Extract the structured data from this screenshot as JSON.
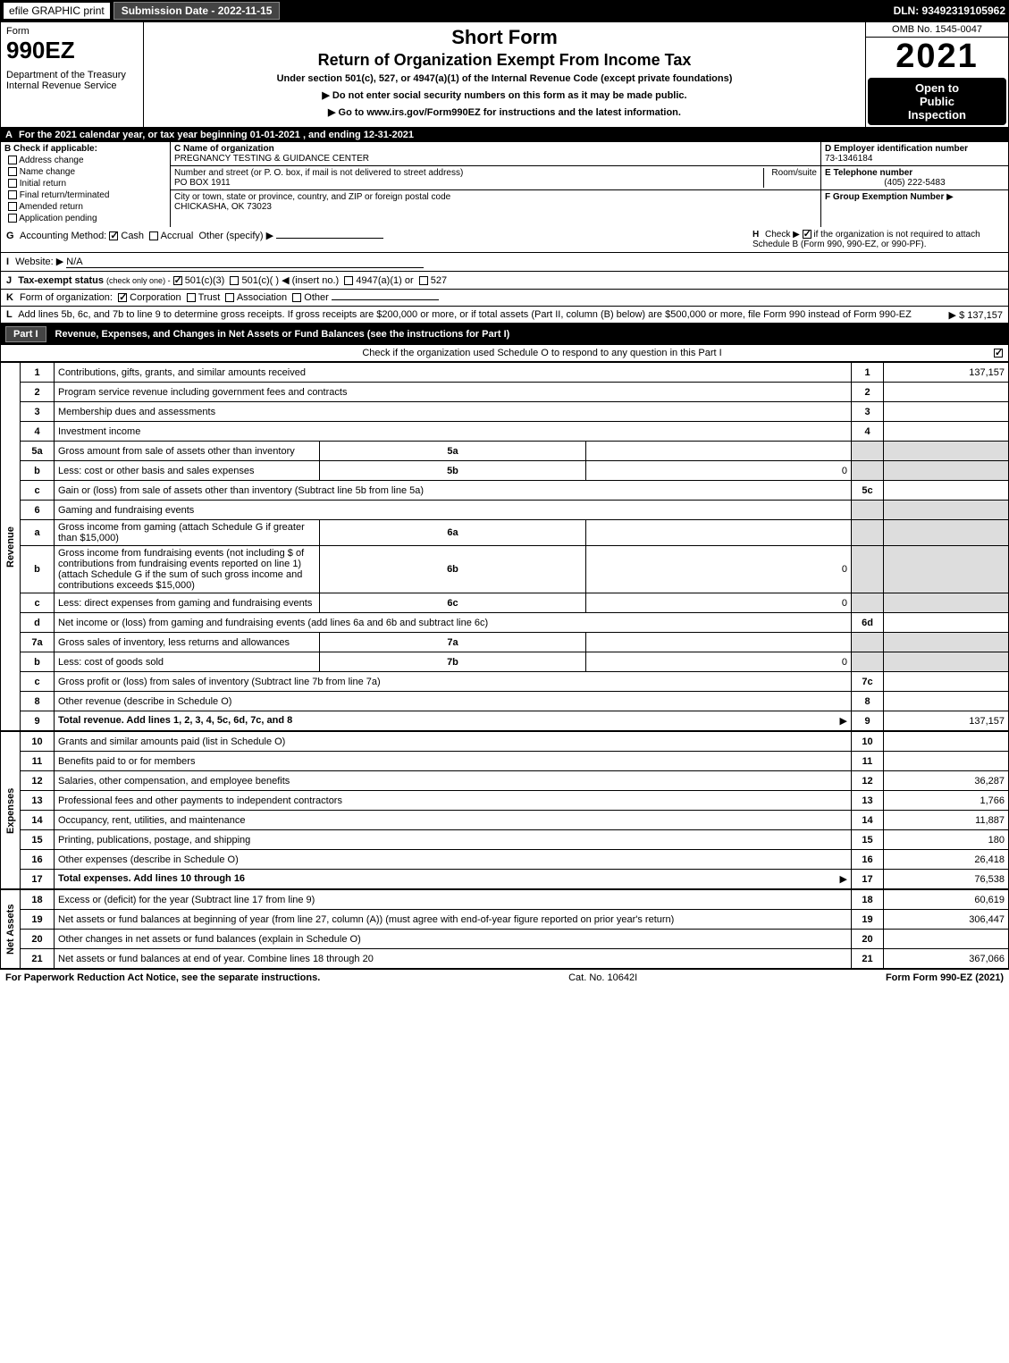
{
  "topbar": {
    "efile": "efile GRAPHIC print",
    "submission": "Submission Date - 2022-11-15",
    "dln": "DLN: 93492319105962"
  },
  "header": {
    "form_word": "Form",
    "form_number": "990EZ",
    "dept": "Department of the Treasury\nInternal Revenue Service",
    "title": "Short Form",
    "subtitle": "Return of Organization Exempt From Income Tax",
    "under": "Under section 501(c), 527, or 4947(a)(1) of the Internal Revenue Code (except private foundations)",
    "do_not": "▶ Do not enter social security numbers on this form as it may be made public.",
    "go_to": "▶ Go to www.irs.gov/Form990EZ for instructions and the latest information.",
    "omb": "OMB No. 1545-0047",
    "year": "2021",
    "open": "Open to\nPublic\nInspection"
  },
  "row_a": {
    "letter": "A",
    "text": "For the 2021 calendar year, or tax year beginning 01-01-2021 , and ending 12-31-2021"
  },
  "col_b": {
    "letter": "B",
    "label": "Check if applicable:",
    "options": [
      "Address change",
      "Name change",
      "Initial return",
      "Final return/terminated",
      "Amended return",
      "Application pending"
    ]
  },
  "col_c": {
    "name_label": "C Name of organization",
    "name": "PREGNANCY TESTING & GUIDANCE CENTER",
    "street_label": "Number and street (or P. O. box, if mail is not delivered to street address)",
    "room_label": "Room/suite",
    "street": "PO BOX 1911",
    "city_label": "City or town, state or province, country, and ZIP or foreign postal code",
    "city": "CHICKASHA, OK  73023"
  },
  "col_d": {
    "d_label": "D Employer identification number",
    "d_value": "73-1346184",
    "e_label": "E Telephone number",
    "e_value": "(405) 222-5483",
    "f_label": "F Group Exemption Number",
    "f_arrow": "▶"
  },
  "row_g": {
    "letter": "G",
    "label": "Accounting Method:",
    "cash": "Cash",
    "accrual": "Accrual",
    "other": "Other (specify) ▶"
  },
  "row_h": {
    "letter": "H",
    "text": "Check ▶",
    "text2": "if the organization is not required to attach Schedule B (Form 990, 990-EZ, or 990-PF)."
  },
  "row_i": {
    "letter": "I",
    "label": "Website: ▶",
    "value": "N/A"
  },
  "row_j": {
    "letter": "J",
    "label": "Tax-exempt status",
    "sub": "(check only one) -",
    "opt1": "501(c)(3)",
    "opt2": "501(c)(  ) ◀ (insert no.)",
    "opt3": "4947(a)(1) or",
    "opt4": "527"
  },
  "row_k": {
    "letter": "K",
    "label": "Form of organization:",
    "opt1": "Corporation",
    "opt2": "Trust",
    "opt3": "Association",
    "opt4": "Other"
  },
  "row_l": {
    "letter": "L",
    "text": "Add lines 5b, 6c, and 7b to line 9 to determine gross receipts. If gross receipts are $200,000 or more, or if total assets (Part II, column (B) below) are $500,000 or more, file Form 990 instead of Form 990-EZ",
    "amount": "▶ $ 137,157"
  },
  "part1": {
    "label": "Part I",
    "title": "Revenue, Expenses, and Changes in Net Assets or Fund Balances (see the instructions for Part I)",
    "check_text": "Check if the organization used Schedule O to respond to any question in this Part I"
  },
  "sections": {
    "revenue": "Revenue",
    "expenses": "Expenses",
    "netassets": "Net Assets"
  },
  "lines": [
    {
      "num": "1",
      "desc": "Contributions, gifts, grants, and similar amounts received",
      "ln": "1",
      "amt": "137,157"
    },
    {
      "num": "2",
      "desc": "Program service revenue including government fees and contracts",
      "ln": "2",
      "amt": ""
    },
    {
      "num": "3",
      "desc": "Membership dues and assessments",
      "ln": "3",
      "amt": ""
    },
    {
      "num": "4",
      "desc": "Investment income",
      "ln": "4",
      "amt": ""
    },
    {
      "num": "5a",
      "desc": "Gross amount from sale of assets other than inventory",
      "sub_ln": "5a",
      "sub_amt": ""
    },
    {
      "num": "b",
      "desc": "Less: cost or other basis and sales expenses",
      "sub_ln": "5b",
      "sub_amt": "0"
    },
    {
      "num": "c",
      "desc": "Gain or (loss) from sale of assets other than inventory (Subtract line 5b from line 5a)",
      "ln": "5c",
      "amt": ""
    },
    {
      "num": "6",
      "desc": "Gaming and fundraising events"
    },
    {
      "num": "a",
      "desc": "Gross income from gaming (attach Schedule G if greater than $15,000)",
      "sub_ln": "6a",
      "sub_amt": ""
    },
    {
      "num": "b",
      "desc": "Gross income from fundraising events (not including $            of contributions from fundraising events reported on line 1) (attach Schedule G if the sum of such gross income and contributions exceeds $15,000)",
      "sub_ln": "6b",
      "sub_amt": "0"
    },
    {
      "num": "c",
      "desc": "Less: direct expenses from gaming and fundraising events",
      "sub_ln": "6c",
      "sub_amt": "0"
    },
    {
      "num": "d",
      "desc": "Net income or (loss) from gaming and fundraising events (add lines 6a and 6b and subtract line 6c)",
      "ln": "6d",
      "amt": ""
    },
    {
      "num": "7a",
      "desc": "Gross sales of inventory, less returns and allowances",
      "sub_ln": "7a",
      "sub_amt": ""
    },
    {
      "num": "b",
      "desc": "Less: cost of goods sold",
      "sub_ln": "7b",
      "sub_amt": "0"
    },
    {
      "num": "c",
      "desc": "Gross profit or (loss) from sales of inventory (Subtract line 7b from line 7a)",
      "ln": "7c",
      "amt": ""
    },
    {
      "num": "8",
      "desc": "Other revenue (describe in Schedule O)",
      "ln": "8",
      "amt": ""
    },
    {
      "num": "9",
      "desc": "Total revenue. Add lines 1, 2, 3, 4, 5c, 6d, 7c, and 8",
      "ln": "9",
      "amt": "137,157",
      "bold": true,
      "arrow": true
    }
  ],
  "expense_lines": [
    {
      "num": "10",
      "desc": "Grants and similar amounts paid (list in Schedule O)",
      "ln": "10",
      "amt": ""
    },
    {
      "num": "11",
      "desc": "Benefits paid to or for members",
      "ln": "11",
      "amt": ""
    },
    {
      "num": "12",
      "desc": "Salaries, other compensation, and employee benefits",
      "ln": "12",
      "amt": "36,287"
    },
    {
      "num": "13",
      "desc": "Professional fees and other payments to independent contractors",
      "ln": "13",
      "amt": "1,766"
    },
    {
      "num": "14",
      "desc": "Occupancy, rent, utilities, and maintenance",
      "ln": "14",
      "amt": "11,887"
    },
    {
      "num": "15",
      "desc": "Printing, publications, postage, and shipping",
      "ln": "15",
      "amt": "180"
    },
    {
      "num": "16",
      "desc": "Other expenses (describe in Schedule O)",
      "ln": "16",
      "amt": "26,418"
    },
    {
      "num": "17",
      "desc": "Total expenses. Add lines 10 through 16",
      "ln": "17",
      "amt": "76,538",
      "bold": true,
      "arrow": true
    }
  ],
  "netasset_lines": [
    {
      "num": "18",
      "desc": "Excess or (deficit) for the year (Subtract line 17 from line 9)",
      "ln": "18",
      "amt": "60,619"
    },
    {
      "num": "19",
      "desc": "Net assets or fund balances at beginning of year (from line 27, column (A)) (must agree with end-of-year figure reported on prior year's return)",
      "ln": "19",
      "amt": "306,447"
    },
    {
      "num": "20",
      "desc": "Other changes in net assets or fund balances (explain in Schedule O)",
      "ln": "20",
      "amt": ""
    },
    {
      "num": "21",
      "desc": "Net assets or fund balances at end of year. Combine lines 18 through 20",
      "ln": "21",
      "amt": "367,066"
    }
  ],
  "footer": {
    "paperwork": "For Paperwork Reduction Act Notice, see the separate instructions.",
    "cat": "Cat. No. 10642I",
    "formref": "Form 990-EZ (2021)"
  }
}
